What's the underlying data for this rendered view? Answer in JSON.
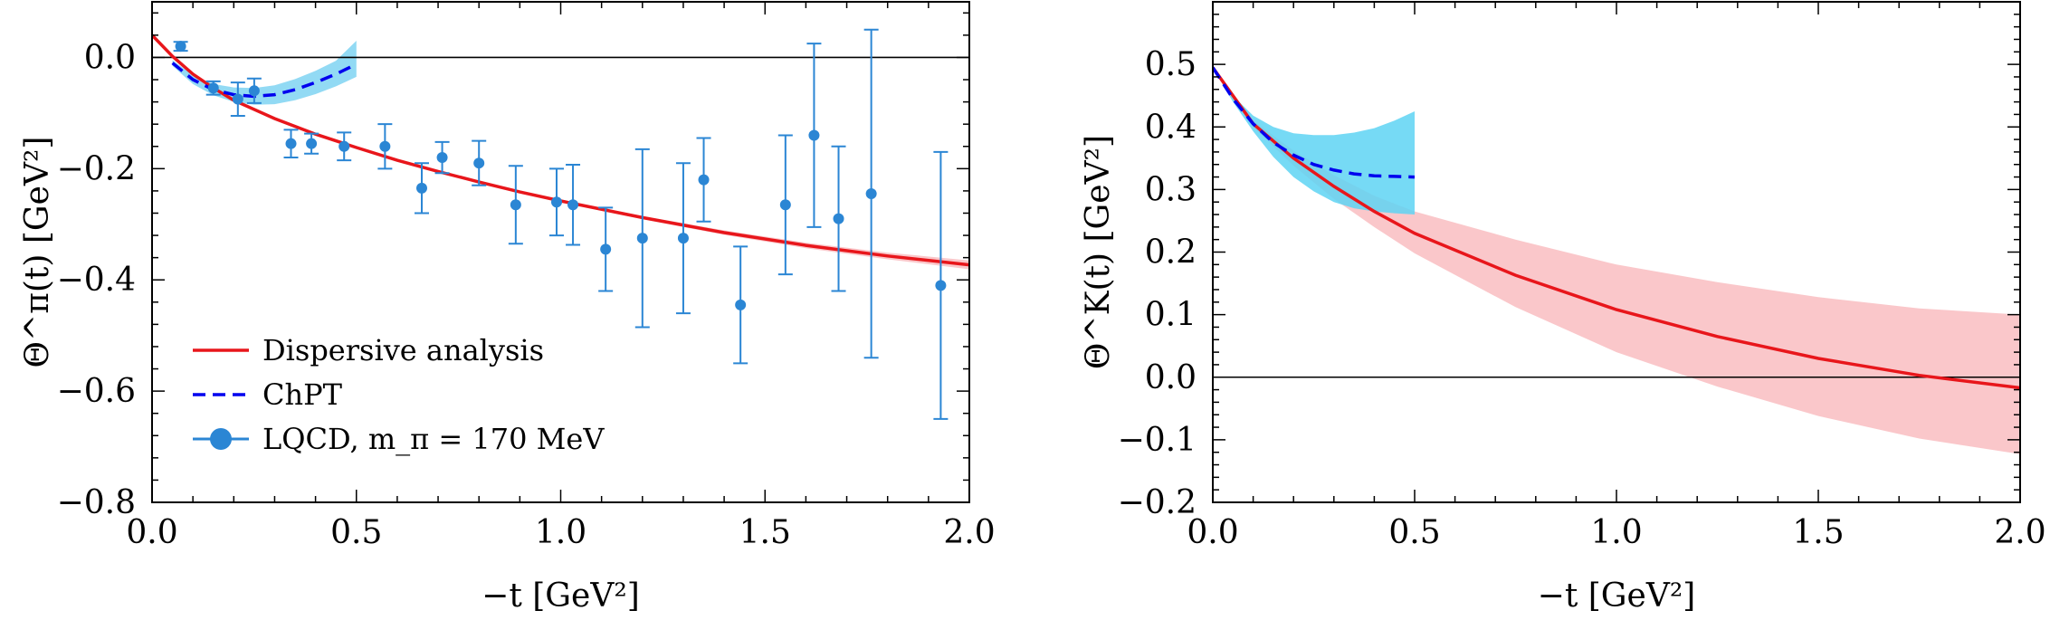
{
  "chart_data": [
    {
      "type": "line",
      "xlabel": "−t [GeV²]",
      "ylabel": "Θ^π(t) [GeV²]",
      "xlim": [
        0,
        2
      ],
      "ylim": [
        -0.8,
        0.1
      ],
      "x_ticks": [
        0,
        0.5,
        1,
        1.5,
        2
      ],
      "x_tick_labels": [
        "0.0",
        "0.5",
        "1.0",
        "1.5",
        "2.0"
      ],
      "y_ticks": [
        0,
        -0.2,
        -0.4,
        -0.6,
        -0.8
      ],
      "y_tick_labels": [
        "0.0",
        "−0.2",
        "−0.4",
        "−0.6",
        "−0.8"
      ],
      "grid": false,
      "legend_position": "bottom-left",
      "legend": [
        {
          "label": "Dispersive analysis",
          "style": "solid-line",
          "color": "#e8161b"
        },
        {
          "label": "ChPT",
          "style": "dashed-line",
          "color": "#0000ee"
        },
        {
          "label": "LQCD, m_π = 170 MeV",
          "style": "point-errorbar",
          "color": "#2b86d4"
        }
      ],
      "series": [
        {
          "name": "Dispersive analysis",
          "style": "solid",
          "color": "#e8161b",
          "band_color": "#f8b4b8",
          "x": [
            0,
            0.05,
            0.1,
            0.15,
            0.2,
            0.3,
            0.4,
            0.5,
            0.6,
            0.7,
            0.8,
            0.9,
            1.0,
            1.2,
            1.4,
            1.6,
            1.8,
            2.0
          ],
          "y": [
            0.04,
            0.002,
            -0.03,
            -0.055,
            -0.077,
            -0.11,
            -0.138,
            -0.162,
            -0.185,
            -0.205,
            -0.224,
            -0.242,
            -0.258,
            -0.288,
            -0.315,
            -0.338,
            -0.357,
            -0.373
          ],
          "band_lower": [
            0.04,
            0.002,
            -0.03,
            -0.055,
            -0.077,
            -0.11,
            -0.139,
            -0.163,
            -0.186,
            -0.206,
            -0.225,
            -0.244,
            -0.26,
            -0.291,
            -0.319,
            -0.343,
            -0.363,
            -0.381
          ],
          "band_upper": [
            0.04,
            0.002,
            -0.03,
            -0.055,
            -0.077,
            -0.11,
            -0.137,
            -0.161,
            -0.184,
            -0.204,
            -0.223,
            -0.24,
            -0.256,
            -0.285,
            -0.311,
            -0.333,
            -0.351,
            -0.365
          ]
        },
        {
          "name": "ChPT",
          "style": "dashed",
          "color": "#0000ee",
          "band_color": "#7fd3f2",
          "x": [
            0.05,
            0.1,
            0.15,
            0.2,
            0.25,
            0.3,
            0.35,
            0.4,
            0.45,
            0.5
          ],
          "y": [
            -0.01,
            -0.04,
            -0.058,
            -0.067,
            -0.07,
            -0.067,
            -0.058,
            -0.045,
            -0.03,
            -0.012
          ],
          "band_lower": [
            -0.015,
            -0.048,
            -0.068,
            -0.08,
            -0.085,
            -0.084,
            -0.077,
            -0.066,
            -0.052,
            -0.035
          ],
          "band_upper": [
            -0.005,
            -0.032,
            -0.048,
            -0.054,
            -0.055,
            -0.05,
            -0.039,
            -0.024,
            -0.006,
            0.03
          ]
        },
        {
          "name": "LQCD, m_π = 170 MeV",
          "style": "points-errorbars",
          "color": "#2b86d4",
          "x": [
            0.07,
            0.15,
            0.21,
            0.25,
            0.34,
            0.39,
            0.47,
            0.57,
            0.66,
            0.71,
            0.8,
            0.89,
            0.99,
            1.03,
            1.11,
            1.2,
            1.3,
            1.35,
            1.44,
            1.55,
            1.62,
            1.68,
            1.76,
            1.93
          ],
          "y": [
            0.02,
            -0.055,
            -0.075,
            -0.06,
            -0.155,
            -0.155,
            -0.16,
            -0.16,
            -0.235,
            -0.18,
            -0.19,
            -0.265,
            -0.26,
            -0.265,
            -0.345,
            -0.325,
            -0.325,
            -0.22,
            -0.445,
            -0.265,
            -0.14,
            -0.29,
            -0.245,
            -0.41
          ],
          "err": [
            0.008,
            0.012,
            0.03,
            0.022,
            0.025,
            0.018,
            0.025,
            0.04,
            0.045,
            0.028,
            0.04,
            0.07,
            0.06,
            0.072,
            0.075,
            0.16,
            0.135,
            0.075,
            0.105,
            0.125,
            0.165,
            0.13,
            0.295,
            0.24
          ]
        }
      ]
    },
    {
      "type": "line",
      "xlabel": "−t [GeV²]",
      "ylabel": "Θ^K(t) [GeV²]",
      "xlim": [
        0,
        2
      ],
      "ylim": [
        -0.2,
        0.6
      ],
      "x_ticks": [
        0,
        0.5,
        1,
        1.5,
        2
      ],
      "x_tick_labels": [
        "0.0",
        "0.5",
        "1.0",
        "1.5",
        "2.0"
      ],
      "y_ticks": [
        0.5,
        0.4,
        0.3,
        0.2,
        0.1,
        0,
        -0.1,
        -0.2
      ],
      "y_tick_labels": [
        "0.5",
        "0.4",
        "0.3",
        "0.2",
        "0.1",
        "0.0",
        "−0.1",
        "−0.2"
      ],
      "grid": false,
      "series": [
        {
          "name": "Dispersive analysis",
          "style": "solid",
          "color": "#e8161b",
          "band_color": "#f8b4b8",
          "x": [
            0,
            0.1,
            0.2,
            0.3,
            0.4,
            0.5,
            0.75,
            1.0,
            1.25,
            1.5,
            1.75,
            2.0
          ],
          "y": [
            0.495,
            0.405,
            0.35,
            0.305,
            0.265,
            0.23,
            0.163,
            0.108,
            0.065,
            0.03,
            0.003,
            -0.017
          ],
          "band_lower": [
            0.495,
            0.4,
            0.338,
            0.285,
            0.24,
            0.198,
            0.112,
            0.04,
            -0.015,
            -0.062,
            -0.098,
            -0.123
          ],
          "band_upper": [
            0.495,
            0.41,
            0.362,
            0.323,
            0.29,
            0.265,
            0.22,
            0.18,
            0.152,
            0.128,
            0.11,
            0.1
          ]
        },
        {
          "name": "ChPT",
          "style": "dashed",
          "color": "#0000ee",
          "band_color": "#5ed3f3",
          "x": [
            0,
            0.05,
            0.1,
            0.15,
            0.2,
            0.25,
            0.3,
            0.35,
            0.4,
            0.45,
            0.5
          ],
          "y": [
            0.495,
            0.445,
            0.405,
            0.375,
            0.355,
            0.34,
            0.331,
            0.325,
            0.322,
            0.321,
            0.32
          ],
          "band_lower": [
            0.495,
            0.44,
            0.393,
            0.352,
            0.32,
            0.297,
            0.28,
            0.27,
            0.265,
            0.262,
            0.26
          ],
          "band_upper": [
            0.495,
            0.45,
            0.418,
            0.4,
            0.39,
            0.387,
            0.387,
            0.391,
            0.398,
            0.41,
            0.425
          ]
        }
      ]
    }
  ]
}
